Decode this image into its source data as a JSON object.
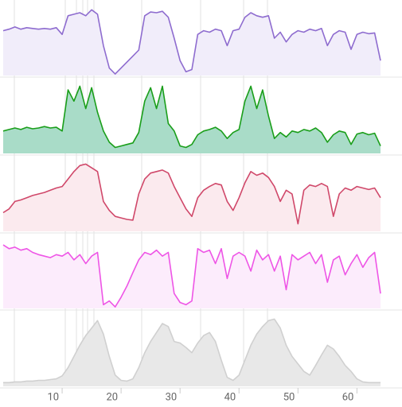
{
  "chart_data": [
    {
      "type": "line",
      "color": "#8e6ccf",
      "fill": "#f1edfa",
      "ylim": [
        0,
        100
      ],
      "x": [
        0,
        1,
        2,
        3,
        4,
        5,
        6,
        7,
        8,
        9,
        10,
        11,
        12,
        13,
        14,
        15,
        16,
        17,
        18,
        19,
        20,
        21,
        22,
        23,
        24,
        25,
        26,
        27,
        28,
        29,
        30,
        31,
        32,
        33,
        34,
        35,
        36,
        37,
        38,
        39,
        40,
        41,
        42,
        43,
        44,
        45,
        46,
        47,
        48,
        49,
        50,
        51,
        52,
        53,
        54,
        55,
        56,
        57,
        58,
        59,
        60,
        61,
        62,
        63,
        64
      ],
      "xlim": [
        0,
        64
      ],
      "values": [
        60,
        62,
        65,
        62,
        64,
        63,
        62,
        63,
        62,
        64,
        55,
        80,
        82,
        84,
        80,
        88,
        82,
        40,
        10,
        2,
        10,
        18,
        26,
        34,
        80,
        85,
        84,
        86,
        78,
        50,
        20,
        5,
        8,
        55,
        60,
        58,
        62,
        60,
        40,
        60,
        62,
        78,
        84,
        80,
        78,
        80,
        50,
        58,
        45,
        55,
        60,
        58,
        62,
        60,
        63,
        40,
        55,
        60,
        58,
        35,
        55,
        58,
        56,
        57,
        20
      ]
    },
    {
      "type": "line",
      "color": "#1a9e1a",
      "fill": "#a9dcc8",
      "ylim": [
        0,
        100
      ],
      "x": [
        0,
        1,
        2,
        3,
        4,
        5,
        6,
        7,
        8,
        9,
        10,
        11,
        12,
        13,
        14,
        15,
        16,
        17,
        18,
        19,
        20,
        21,
        22,
        23,
        24,
        25,
        26,
        27,
        28,
        29,
        30,
        31,
        32,
        33,
        34,
        35,
        36,
        37,
        38,
        39,
        40,
        41,
        42,
        43,
        44,
        45,
        46,
        47,
        48,
        49,
        50,
        51,
        52,
        53,
        54,
        55,
        56,
        57,
        58,
        59,
        60,
        61,
        62,
        63,
        64
      ],
      "xlim": [
        0,
        64
      ],
      "values": [
        30,
        32,
        34,
        32,
        35,
        33,
        34,
        36,
        34,
        35,
        30,
        85,
        70,
        90,
        60,
        88,
        55,
        30,
        15,
        8,
        10,
        12,
        14,
        28,
        70,
        88,
        60,
        90,
        40,
        30,
        10,
        8,
        12,
        25,
        30,
        32,
        35,
        30,
        20,
        28,
        32,
        70,
        90,
        60,
        85,
        50,
        20,
        28,
        22,
        30,
        28,
        32,
        30,
        34,
        28,
        15,
        25,
        30,
        28,
        12,
        26,
        28,
        25,
        27,
        10
      ]
    },
    {
      "type": "line",
      "color": "#d0486a",
      "fill": "#fbeaee",
      "ylim": [
        0,
        100
      ],
      "x": [
        0,
        1,
        2,
        3,
        4,
        5,
        6,
        7,
        8,
        9,
        10,
        11,
        12,
        13,
        14,
        15,
        16,
        17,
        18,
        19,
        20,
        21,
        22,
        23,
        24,
        25,
        26,
        27,
        28,
        29,
        30,
        31,
        32,
        33,
        34,
        35,
        36,
        37,
        38,
        39,
        40,
        41,
        42,
        43,
        44,
        45,
        46,
        47,
        48,
        49,
        50,
        51,
        52,
        53,
        54,
        55,
        56,
        57,
        58,
        59,
        60,
        61,
        62,
        63,
        64
      ],
      "xlim": [
        0,
        64
      ],
      "values": [
        25,
        30,
        40,
        42,
        45,
        48,
        50,
        52,
        55,
        58,
        60,
        70,
        80,
        88,
        90,
        85,
        80,
        40,
        28,
        20,
        18,
        16,
        15,
        50,
        70,
        78,
        80,
        82,
        78,
        60,
        45,
        30,
        20,
        45,
        55,
        60,
        64,
        62,
        40,
        28,
        45,
        65,
        80,
        75,
        78,
        72,
        60,
        40,
        55,
        50,
        10,
        55,
        62,
        60,
        64,
        60,
        20,
        50,
        58,
        55,
        60,
        58,
        56,
        58,
        45
      ]
    },
    {
      "type": "line",
      "color": "#ee55e6",
      "fill": "#fcecfc",
      "ylim": [
        0,
        100
      ],
      "x": [
        0,
        1,
        2,
        3,
        4,
        5,
        6,
        7,
        8,
        9,
        10,
        11,
        12,
        13,
        14,
        15,
        16,
        17,
        18,
        19,
        20,
        21,
        22,
        23,
        24,
        25,
        26,
        27,
        28,
        29,
        30,
        31,
        32,
        33,
        34,
        35,
        36,
        37,
        38,
        39,
        40,
        41,
        42,
        43,
        44,
        45,
        46,
        47,
        48,
        49,
        50,
        51,
        52,
        53,
        54,
        55,
        56,
        57,
        58,
        59,
        60,
        61,
        62,
        63,
        64
      ],
      "xlim": [
        0,
        64
      ],
      "values": [
        85,
        80,
        82,
        78,
        80,
        75,
        72,
        70,
        68,
        72,
        70,
        75,
        65,
        72,
        60,
        70,
        75,
        5,
        10,
        2,
        15,
        30,
        48,
        65,
        75,
        72,
        78,
        70,
        75,
        20,
        8,
        5,
        10,
        80,
        75,
        78,
        60,
        80,
        40,
        70,
        75,
        70,
        50,
        78,
        65,
        72,
        50,
        70,
        25,
        72,
        65,
        70,
        75,
        60,
        72,
        35,
        65,
        70,
        45,
        60,
        72,
        55,
        68,
        75,
        20
      ]
    },
    {
      "type": "line",
      "color": "#d0d0d0",
      "fill": "#e8e8e8",
      "ylim": [
        0,
        100
      ],
      "x": [
        0,
        1,
        2,
        3,
        4,
        5,
        6,
        7,
        8,
        9,
        10,
        11,
        12,
        13,
        14,
        15,
        16,
        17,
        18,
        19,
        20,
        21,
        22,
        23,
        24,
        25,
        26,
        27,
        28,
        29,
        30,
        31,
        32,
        33,
        34,
        35,
        36,
        37,
        38,
        39,
        40,
        41,
        42,
        43,
        44,
        45,
        46,
        47,
        48,
        49,
        50,
        51,
        52,
        53,
        54,
        55,
        56,
        57,
        58,
        59,
        60,
        61,
        62,
        63,
        64
      ],
      "xlim": [
        0,
        64
      ],
      "xticks": [
        10,
        20,
        30,
        40,
        50,
        60
      ],
      "values": [
        5,
        5,
        6,
        6,
        7,
        7,
        8,
        8,
        9,
        10,
        14,
        25,
        40,
        55,
        68,
        78,
        88,
        70,
        40,
        15,
        8,
        7,
        10,
        25,
        45,
        60,
        72,
        84,
        80,
        60,
        58,
        52,
        45,
        58,
        68,
        72,
        60,
        35,
        12,
        8,
        15,
        35,
        55,
        70,
        80,
        88,
        90,
        78,
        55,
        40,
        30,
        20,
        15,
        28,
        42,
        55,
        50,
        40,
        28,
        20,
        10,
        6,
        5,
        5,
        5
      ]
    }
  ]
}
